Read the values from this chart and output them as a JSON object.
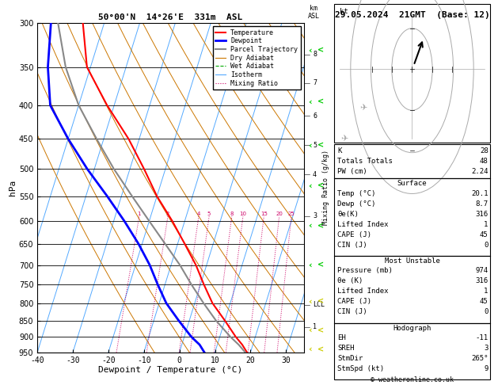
{
  "title_left": "50°00'N  14°26'E  331m  ASL",
  "title_right": "29.05.2024  21GMT  (Base: 12)",
  "xlabel": "Dewpoint / Temperature (°C)",
  "ylabel_left": "hPa",
  "pressure_min": 300,
  "pressure_max": 950,
  "temp_min": -40,
  "temp_max": 35,
  "skew": 25.0,
  "temp_profile": {
    "pressure": [
      974,
      950,
      925,
      900,
      850,
      800,
      750,
      700,
      650,
      600,
      550,
      500,
      450,
      400,
      350,
      300
    ],
    "temp": [
      20.1,
      19.0,
      17.0,
      14.5,
      10.0,
      5.0,
      1.0,
      -3.0,
      -8.0,
      -13.5,
      -20.0,
      -26.0,
      -33.0,
      -42.0,
      -51.0,
      -56.0
    ]
  },
  "dewp_profile": {
    "pressure": [
      974,
      950,
      925,
      900,
      850,
      800,
      750,
      700,
      650,
      600,
      550,
      500,
      450,
      400,
      350,
      300
    ],
    "temp": [
      8.7,
      7.0,
      5.0,
      2.0,
      -3.0,
      -8.0,
      -12.0,
      -16.0,
      -21.0,
      -27.0,
      -34.0,
      -42.0,
      -50.0,
      -58.0,
      -62.0,
      -65.0
    ]
  },
  "parcel_profile": {
    "pressure": [
      974,
      950,
      925,
      900,
      850,
      800,
      750,
      700,
      650,
      600,
      550,
      500,
      450,
      400,
      350,
      300
    ],
    "temp": [
      20.1,
      18.5,
      16.0,
      13.0,
      7.5,
      2.5,
      -2.5,
      -7.5,
      -13.5,
      -20.0,
      -27.0,
      -34.5,
      -42.0,
      -50.0,
      -57.0,
      -63.0
    ]
  },
  "lcl_pressure": 805,
  "km_pressures": [
    870,
    805,
    590,
    510,
    460,
    415,
    370,
    335
  ],
  "km_labels": [
    "1",
    "LCL",
    "3",
    "4",
    "5",
    "6",
    "7",
    "8"
  ],
  "mixing_ratio_values": [
    1,
    2,
    4,
    5,
    8,
    10,
    15,
    20,
    25
  ],
  "mixing_ratio_label_pressure": 590,
  "pressure_lines": [
    300,
    350,
    400,
    450,
    500,
    550,
    600,
    650,
    700,
    750,
    800,
    850,
    900,
    950
  ],
  "isotherm_temps": [
    -50,
    -40,
    -30,
    -20,
    -10,
    0,
    10,
    20,
    30,
    40
  ],
  "dry_adiabat_thetas": [
    270,
    280,
    290,
    300,
    310,
    320,
    330,
    340,
    350,
    360,
    370,
    380,
    390,
    400,
    410,
    420
  ],
  "wet_adiabat_t0s": [
    -20,
    -15,
    -10,
    -5,
    0,
    5,
    10,
    15,
    20,
    25,
    30,
    35,
    40
  ],
  "legend_items": [
    {
      "label": "Temperature",
      "color": "#ff0000",
      "ls": "-",
      "lw": 1.5
    },
    {
      "label": "Dewpoint",
      "color": "#0000ff",
      "ls": "-",
      "lw": 2.0
    },
    {
      "label": "Parcel Trajectory",
      "color": "#888888",
      "ls": "-",
      "lw": 1.5
    },
    {
      "label": "Dry Adiabat",
      "color": "#cc7700",
      "ls": "-",
      "lw": 0.8
    },
    {
      "label": "Wet Adiabat",
      "color": "#00aa00",
      "ls": "--",
      "lw": 0.8
    },
    {
      "label": "Isotherm",
      "color": "#55aaff",
      "ls": "-",
      "lw": 0.8
    },
    {
      "label": "Mixing Ratio",
      "color": "#cc0066",
      "ls": ":",
      "lw": 0.8
    }
  ],
  "wind_arrows": {
    "pressures": [
      330,
      395,
      460,
      530,
      610,
      700,
      795,
      880,
      940
    ],
    "colors": [
      "#00cc00",
      "#00cc00",
      "#00cc00",
      "#00cc00",
      "#00cc00",
      "#00cc00",
      "#cccc00",
      "#cccc00",
      "#cccc00"
    ]
  },
  "right_panel": {
    "stats": [
      {
        "label": "K",
        "value": "28"
      },
      {
        "label": "Totals Totals",
        "value": "48"
      },
      {
        "label": "PW (cm)",
        "value": "2.24"
      }
    ],
    "surface_title": "Surface",
    "surface": [
      {
        "label": "Temp (°C)",
        "value": "20.1"
      },
      {
        "label": "Dewp (°C)",
        "value": "8.7"
      },
      {
        "label": "θe(K)",
        "value": "316"
      },
      {
        "label": "Lifted Index",
        "value": "1"
      },
      {
        "label": "CAPE (J)",
        "value": "45"
      },
      {
        "label": "CIN (J)",
        "value": "0"
      }
    ],
    "unstable_title": "Most Unstable",
    "unstable": [
      {
        "label": "Pressure (mb)",
        "value": "974"
      },
      {
        "label": "θe (K)",
        "value": "316"
      },
      {
        "label": "Lifted Index",
        "value": "1"
      },
      {
        "label": "CAPE (J)",
        "value": "45"
      },
      {
        "label": "CIN (J)",
        "value": "0"
      }
    ],
    "hodograph_title": "Hodograph",
    "hodograph": [
      {
        "label": "EH",
        "value": "-11"
      },
      {
        "label": "SREH",
        "value": "3"
      },
      {
        "label": "StmDir",
        "value": "265°"
      },
      {
        "label": "StmSpd (kt)",
        "value": "9"
      }
    ],
    "copyright": "© weatheronline.co.uk"
  }
}
